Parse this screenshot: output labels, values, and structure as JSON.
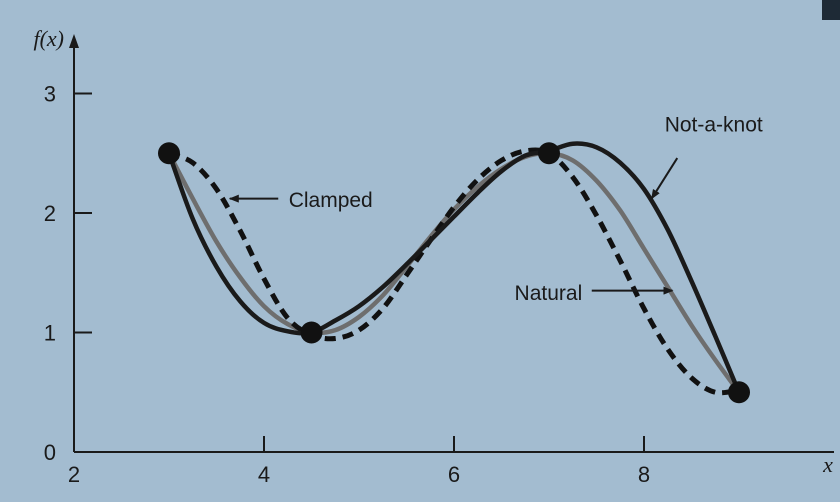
{
  "chart_data": {
    "type": "line",
    "title": "",
    "xlabel": "x",
    "ylabel": "f(x)",
    "xlim": [
      2,
      9.6
    ],
    "ylim": [
      0,
      3.5
    ],
    "x_ticks": [
      2,
      4,
      6,
      8
    ],
    "y_ticks": [
      0,
      1,
      2,
      3
    ],
    "grid": false,
    "data_points": {
      "x": [
        3,
        4.5,
        7,
        9
      ],
      "y": [
        2.5,
        1,
        2.5,
        0.5
      ]
    },
    "series": [
      {
        "name": "Not-a-knot",
        "style": "solid",
        "color": "#1a1a1a",
        "x": [
          3,
          3.25,
          3.5,
          3.75,
          4,
          4.25,
          4.5,
          4.75,
          5,
          5.25,
          5.5,
          5.75,
          6,
          6.25,
          6.5,
          6.75,
          7,
          7.25,
          7.5,
          7.75,
          8,
          8.25,
          8.5,
          8.75,
          9
        ],
        "y": [
          2.5,
          1.95,
          1.55,
          1.26,
          1.08,
          1.01,
          1.0,
          1.1,
          1.22,
          1.38,
          1.57,
          1.77,
          1.97,
          2.17,
          2.35,
          2.48,
          2.52,
          2.58,
          2.55,
          2.42,
          2.2,
          1.86,
          1.43,
          0.97,
          0.5
        ]
      },
      {
        "name": "Natural",
        "style": "solid",
        "color": "#6e6e6e",
        "x": [
          3,
          3.25,
          3.5,
          3.75,
          4,
          4.25,
          4.5,
          4.75,
          5,
          5.25,
          5.5,
          5.75,
          6,
          6.25,
          6.5,
          6.75,
          7,
          7.25,
          7.5,
          7.75,
          8,
          8.25,
          8.5,
          8.75,
          9
        ],
        "y": [
          2.5,
          2.12,
          1.76,
          1.46,
          1.22,
          1.07,
          1.0,
          1.02,
          1.13,
          1.31,
          1.55,
          1.8,
          2.03,
          2.22,
          2.37,
          2.47,
          2.5,
          2.44,
          2.27,
          2.02,
          1.7,
          1.38,
          1.06,
          0.77,
          0.5
        ]
      },
      {
        "name": "Clamped",
        "style": "dashed",
        "color": "#111111",
        "x": [
          3,
          3.25,
          3.5,
          3.75,
          4,
          4.25,
          4.5,
          4.75,
          5,
          5.25,
          5.5,
          5.75,
          6,
          6.25,
          6.5,
          6.75,
          7,
          7.25,
          7.5,
          7.75,
          8,
          8.25,
          8.5,
          8.75,
          9
        ],
        "y": [
          2.5,
          2.42,
          2.2,
          1.85,
          1.45,
          1.12,
          0.98,
          0.95,
          1.02,
          1.2,
          1.48,
          1.77,
          2.05,
          2.28,
          2.44,
          2.52,
          2.5,
          2.3,
          1.98,
          1.6,
          1.2,
          0.86,
          0.62,
          0.5,
          0.52
        ]
      }
    ],
    "annotations": [
      {
        "text": "Not-a-knot",
        "series": "Not-a-knot"
      },
      {
        "text": "Natural",
        "series": "Natural"
      },
      {
        "text": "Clamped",
        "series": "Clamped"
      }
    ]
  }
}
